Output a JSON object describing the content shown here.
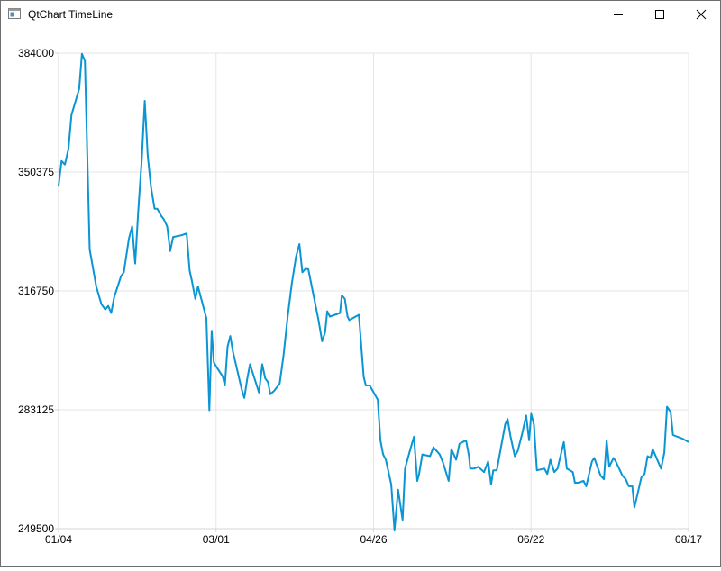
{
  "window": {
    "title": "QtChart TimeLine",
    "icons": {
      "app": "app-window-icon",
      "minimize": "minimize-icon",
      "maximize": "maximize-icon",
      "close": "close-icon"
    }
  },
  "colors": {
    "series": "#0b95d3",
    "grid": "#e6e6e6",
    "axis": "#d6d6d6",
    "text": "#000000"
  },
  "chart_data": {
    "type": "line",
    "title": "",
    "xlabel": "",
    "ylabel": "",
    "grid": true,
    "legend": "none",
    "ylim": [
      249500,
      384000
    ],
    "xlim": [
      "01/04",
      "08/17"
    ],
    "x_tick_labels": [
      "01/04",
      "03/01",
      "04/26",
      "06/22",
      "08/17"
    ],
    "y_tick_labels": [
      "249500",
      "283125",
      "316750",
      "350375",
      "384000"
    ],
    "series": [
      {
        "name": "",
        "points": [
          [
            0.0,
            346500
          ],
          [
            1.0,
            353500
          ],
          [
            2.1,
            352500
          ],
          [
            3.3,
            357000
          ],
          [
            4.3,
            366500
          ],
          [
            6.9,
            374000
          ],
          [
            7.8,
            383800
          ],
          [
            8.8,
            381800
          ],
          [
            10.4,
            328500
          ],
          [
            12.6,
            318000
          ],
          [
            14.3,
            313000
          ],
          [
            15.6,
            311500
          ],
          [
            16.6,
            312500
          ],
          [
            17.6,
            310500
          ],
          [
            18.6,
            315000
          ],
          [
            20.9,
            321000
          ],
          [
            21.8,
            322000
          ],
          [
            23.5,
            331500
          ],
          [
            24.6,
            335000
          ],
          [
            25.6,
            324500
          ],
          [
            26.6,
            339000
          ],
          [
            27.8,
            354000
          ],
          [
            28.8,
            370500
          ],
          [
            29.8,
            355000
          ],
          [
            30.9,
            346000
          ],
          [
            32.1,
            340000
          ],
          [
            33.0,
            340000
          ],
          [
            34.3,
            338000
          ],
          [
            35.2,
            337000
          ],
          [
            36.3,
            335000
          ],
          [
            37.3,
            328000
          ],
          [
            38.3,
            332000
          ],
          [
            41.1,
            332500
          ],
          [
            42.8,
            333000
          ],
          [
            43.8,
            322500
          ],
          [
            44.6,
            319500
          ],
          [
            45.7,
            314500
          ],
          [
            46.6,
            318000
          ],
          [
            49.4,
            309000
          ],
          [
            50.4,
            283000
          ],
          [
            51.2,
            305500
          ],
          [
            51.9,
            296500
          ],
          [
            53.0,
            295000
          ],
          [
            54.9,
            292500
          ],
          [
            55.6,
            290000
          ],
          [
            56.5,
            301000
          ],
          [
            57.4,
            304000
          ],
          [
            58.3,
            299500
          ],
          [
            61.2,
            289000
          ],
          [
            62.1,
            286500
          ],
          [
            63.1,
            292000
          ],
          [
            64.0,
            296000
          ],
          [
            65.1,
            293000
          ],
          [
            67.0,
            288000
          ],
          [
            68.1,
            296000
          ],
          [
            69.1,
            292000
          ],
          [
            70.0,
            291000
          ],
          [
            70.8,
            287500
          ],
          [
            72.1,
            288500
          ],
          [
            73.9,
            290500
          ],
          [
            75.2,
            298500
          ],
          [
            76.6,
            309500
          ],
          [
            77.9,
            318500
          ],
          [
            79.4,
            326500
          ],
          [
            80.5,
            330000
          ],
          [
            81.5,
            322000
          ],
          [
            82.5,
            323000
          ],
          [
            83.5,
            322900
          ],
          [
            85.0,
            316500
          ],
          [
            86.9,
            308500
          ],
          [
            88.1,
            302500
          ],
          [
            89.1,
            305000
          ],
          [
            89.8,
            311000
          ],
          [
            90.7,
            309500
          ],
          [
            92.4,
            310000
          ],
          [
            94.1,
            310500
          ],
          [
            94.7,
            315500
          ],
          [
            95.7,
            314500
          ],
          [
            96.6,
            309500
          ],
          [
            97.2,
            308500
          ],
          [
            100.4,
            310000
          ],
          [
            102.0,
            292500
          ],
          [
            102.7,
            290000
          ],
          [
            104.0,
            290000
          ],
          [
            106.7,
            286000
          ],
          [
            107.6,
            274500
          ],
          [
            108.5,
            270500
          ],
          [
            109.4,
            269000
          ],
          [
            111.2,
            262000
          ],
          [
            112.3,
            249000
          ],
          [
            113.5,
            260500
          ],
          [
            115.0,
            252000
          ],
          [
            115.8,
            266500
          ],
          [
            117.6,
            272000
          ],
          [
            118.8,
            275500
          ],
          [
            119.9,
            263000
          ],
          [
            120.5,
            265000
          ],
          [
            121.6,
            270500
          ],
          [
            124.2,
            270000
          ],
          [
            125.3,
            272500
          ],
          [
            127.4,
            270500
          ],
          [
            128.6,
            268000
          ],
          [
            130.4,
            263000
          ],
          [
            131.3,
            272000
          ],
          [
            132.9,
            269000
          ],
          [
            134.0,
            273500
          ],
          [
            136.2,
            274500
          ],
          [
            137.2,
            270000
          ],
          [
            137.6,
            266500
          ],
          [
            138.9,
            266500
          ],
          [
            140.3,
            267000
          ],
          [
            142.2,
            265500
          ],
          [
            143.6,
            268500
          ],
          [
            144.6,
            262000
          ],
          [
            145.3,
            266000
          ],
          [
            146.5,
            266000
          ],
          [
            149.3,
            279000
          ],
          [
            150.1,
            280500
          ],
          [
            151.1,
            275500
          ],
          [
            152.5,
            270000
          ],
          [
            153.5,
            271500
          ],
          [
            155.0,
            276500
          ],
          [
            156.3,
            281500
          ],
          [
            157.3,
            274500
          ],
          [
            158.0,
            282000
          ],
          [
            158.9,
            279000
          ],
          [
            159.9,
            266000
          ],
          [
            162.4,
            266500
          ],
          [
            163.4,
            265000
          ],
          [
            164.4,
            269000
          ],
          [
            165.7,
            265500
          ],
          [
            166.8,
            266500
          ],
          [
            168.9,
            274000
          ],
          [
            169.9,
            266500
          ],
          [
            171.9,
            265500
          ],
          [
            172.6,
            262500
          ],
          [
            173.6,
            262500
          ],
          [
            175.5,
            263000
          ],
          [
            176.4,
            261500
          ],
          [
            178.3,
            268500
          ],
          [
            179.1,
            269500
          ],
          [
            181.2,
            264500
          ],
          [
            182.3,
            263500
          ],
          [
            183.2,
            274500
          ],
          [
            184.1,
            267000
          ],
          [
            185.5,
            269500
          ],
          [
            186.3,
            268500
          ],
          [
            188.5,
            264500
          ],
          [
            189.6,
            263500
          ],
          [
            190.6,
            261500
          ],
          [
            191.8,
            261500
          ],
          [
            192.5,
            255500
          ],
          [
            193.6,
            259500
          ],
          [
            194.8,
            264000
          ],
          [
            195.9,
            265000
          ],
          [
            196.9,
            270000
          ],
          [
            197.9,
            269500
          ],
          [
            198.6,
            272000
          ],
          [
            201.4,
            266500
          ],
          [
            202.5,
            271000
          ],
          [
            203.4,
            284000
          ],
          [
            204.6,
            282500
          ],
          [
            205.4,
            276000
          ],
          [
            208.5,
            275000
          ],
          [
            210.6,
            274000
          ]
        ]
      }
    ]
  }
}
